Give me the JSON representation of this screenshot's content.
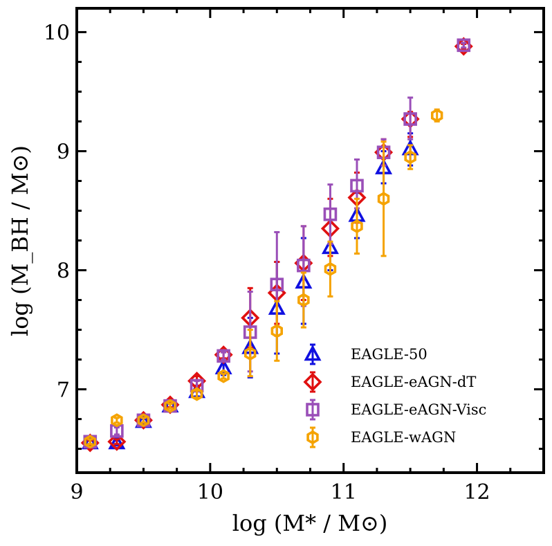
{
  "chart_data": {
    "type": "scatter",
    "title": "",
    "xlabel": "log (M* / M⊙)",
    "ylabel": "log (M_BH / M⊙)",
    "xlim": [
      9,
      12.5
    ],
    "ylim": [
      6.3,
      10.2
    ],
    "xticks": [
      9,
      10,
      11,
      12
    ],
    "yticks": [
      7,
      8,
      9,
      10
    ],
    "xtick_labels": [
      "9",
      "10",
      "11",
      "12"
    ],
    "ytick_labels": [
      "7",
      "8",
      "9",
      "10"
    ],
    "grid": false,
    "legend_position": "bottom-right",
    "series": [
      {
        "name": "EAGLE-50",
        "marker": "triangle",
        "color": "#1010e0",
        "points": [
          {
            "x": 9.1,
            "y": 6.55,
            "lo": 6.53,
            "hi": 6.57
          },
          {
            "x": 9.3,
            "y": 6.55,
            "lo": 6.53,
            "hi": 6.57
          },
          {
            "x": 9.5,
            "y": 6.73,
            "lo": 6.71,
            "hi": 6.75
          },
          {
            "x": 9.7,
            "y": 6.86,
            "lo": 6.84,
            "hi": 6.88
          },
          {
            "x": 9.9,
            "y": 6.98,
            "lo": 6.94,
            "hi": 7.02
          },
          {
            "x": 10.1,
            "y": 7.18,
            "lo": 7.12,
            "hi": 7.24
          },
          {
            "x": 10.3,
            "y": 7.35,
            "lo": 7.1,
            "hi": 7.6
          },
          {
            "x": 10.5,
            "y": 7.68,
            "lo": 7.3,
            "hi": 8.07
          },
          {
            "x": 10.7,
            "y": 7.9,
            "lo": 7.55,
            "hi": 8.27
          },
          {
            "x": 10.9,
            "y": 8.19,
            "lo": 8.0,
            "hi": 8.4
          },
          {
            "x": 11.1,
            "y": 8.46,
            "lo": 8.27,
            "hi": 8.65
          },
          {
            "x": 11.3,
            "y": 8.86,
            "lo": 8.73,
            "hi": 9.0
          },
          {
            "x": 11.5,
            "y": 9.02,
            "lo": 8.88,
            "hi": 9.15
          }
        ]
      },
      {
        "name": "EAGLE-eAGN-dT",
        "marker": "diamond",
        "color": "#e01010",
        "points": [
          {
            "x": 9.1,
            "y": 6.55,
            "lo": 6.53,
            "hi": 6.57
          },
          {
            "x": 9.3,
            "y": 6.56,
            "lo": 6.54,
            "hi": 6.58
          },
          {
            "x": 9.5,
            "y": 6.74,
            "lo": 6.72,
            "hi": 6.76
          },
          {
            "x": 9.7,
            "y": 6.87,
            "lo": 6.85,
            "hi": 6.89
          },
          {
            "x": 9.9,
            "y": 7.07,
            "lo": 7.03,
            "hi": 7.11
          },
          {
            "x": 10.1,
            "y": 7.29,
            "lo": 7.26,
            "hi": 7.32
          },
          {
            "x": 10.3,
            "y": 7.6,
            "lo": 7.35,
            "hi": 7.85
          },
          {
            "x": 10.5,
            "y": 7.81,
            "lo": 7.55,
            "hi": 8.07
          },
          {
            "x": 10.7,
            "y": 8.06,
            "lo": 7.75,
            "hi": 8.37
          },
          {
            "x": 10.9,
            "y": 8.35,
            "lo": 8.12,
            "hi": 8.6
          },
          {
            "x": 11.1,
            "y": 8.61,
            "lo": 8.4,
            "hi": 8.82
          },
          {
            "x": 11.3,
            "y": 8.99,
            "lo": 8.88,
            "hi": 9.1
          },
          {
            "x": 11.5,
            "y": 9.27,
            "lo": 9.12,
            "hi": 9.33
          },
          {
            "x": 11.9,
            "y": 9.88,
            "lo": 9.86,
            "hi": 9.9
          }
        ]
      },
      {
        "name": "EAGLE-eAGN-Visc",
        "marker": "square",
        "color": "#9a4fb8",
        "points": [
          {
            "x": 9.1,
            "y": 6.56,
            "lo": 6.54,
            "hi": 6.58
          },
          {
            "x": 9.3,
            "y": 6.65,
            "lo": 6.62,
            "hi": 6.68
          },
          {
            "x": 9.5,
            "y": 6.74,
            "lo": 6.72,
            "hi": 6.76
          },
          {
            "x": 9.7,
            "y": 6.86,
            "lo": 6.84,
            "hi": 6.88
          },
          {
            "x": 9.9,
            "y": 7.03,
            "lo": 6.99,
            "hi": 7.07
          },
          {
            "x": 10.1,
            "y": 7.28,
            "lo": 7.25,
            "hi": 7.31
          },
          {
            "x": 10.3,
            "y": 7.48,
            "lo": 7.15,
            "hi": 7.82
          },
          {
            "x": 10.5,
            "y": 7.88,
            "lo": 7.45,
            "hi": 8.32
          },
          {
            "x": 10.7,
            "y": 8.04,
            "lo": 7.7,
            "hi": 8.37
          },
          {
            "x": 10.9,
            "y": 8.47,
            "lo": 8.22,
            "hi": 8.72
          },
          {
            "x": 11.1,
            "y": 8.71,
            "lo": 8.52,
            "hi": 8.93
          },
          {
            "x": 11.3,
            "y": 8.99,
            "lo": 8.88,
            "hi": 9.1
          },
          {
            "x": 11.5,
            "y": 9.27,
            "lo": 9.1,
            "hi": 9.45
          },
          {
            "x": 11.9,
            "y": 9.89,
            "lo": 9.87,
            "hi": 9.91
          }
        ]
      },
      {
        "name": "EAGLE-wAGN",
        "marker": "hexagon",
        "color": "#f5a300",
        "points": [
          {
            "x": 9.1,
            "y": 6.56,
            "lo": 6.54,
            "hi": 6.58
          },
          {
            "x": 9.3,
            "y": 6.74,
            "lo": 6.72,
            "hi": 6.76
          },
          {
            "x": 9.5,
            "y": 6.74,
            "lo": 6.72,
            "hi": 6.76
          },
          {
            "x": 9.7,
            "y": 6.86,
            "lo": 6.84,
            "hi": 6.88
          },
          {
            "x": 9.9,
            "y": 6.96,
            "lo": 6.93,
            "hi": 6.99
          },
          {
            "x": 10.1,
            "y": 7.11,
            "lo": 7.09,
            "hi": 7.13
          },
          {
            "x": 10.3,
            "y": 7.3,
            "lo": 7.11,
            "hi": 7.5
          },
          {
            "x": 10.5,
            "y": 7.49,
            "lo": 7.24,
            "hi": 7.74
          },
          {
            "x": 10.7,
            "y": 7.75,
            "lo": 7.52,
            "hi": 7.98
          },
          {
            "x": 10.9,
            "y": 8.01,
            "lo": 7.78,
            "hi": 8.24
          },
          {
            "x": 11.1,
            "y": 8.37,
            "lo": 8.14,
            "hi": 8.6
          },
          {
            "x": 11.3,
            "y": 8.6,
            "lo": 8.12,
            "hi": 9.08
          },
          {
            "x": 11.5,
            "y": 8.95,
            "lo": 8.85,
            "hi": 9.05
          },
          {
            "x": 11.7,
            "y": 9.3,
            "lo": 9.25,
            "hi": 9.35
          }
        ]
      }
    ]
  }
}
